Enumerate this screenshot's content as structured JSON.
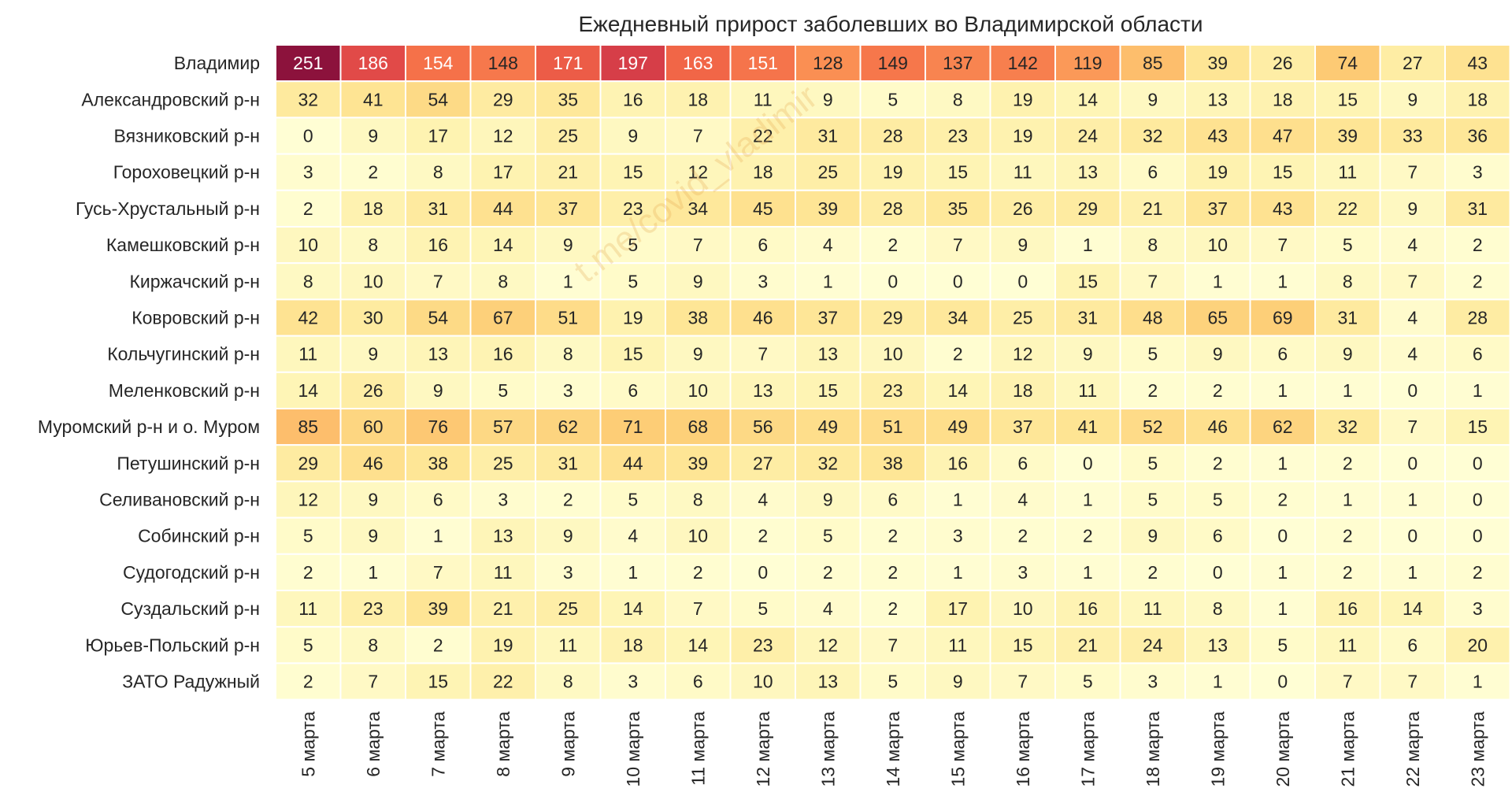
{
  "chart_data": {
    "type": "heatmap",
    "title": "Ежедневный прирост заболевших во Владимирской области",
    "xlabel": "",
    "ylabel": "",
    "x": [
      "5 марта",
      "6 марта",
      "7 марта",
      "8 марта",
      "9 марта",
      "10 марта",
      "11 марта",
      "12 марта",
      "13 марта",
      "14 марта",
      "15 марта",
      "16 марта",
      "17 марта",
      "18 марта",
      "19 марта",
      "20 марта",
      "21 марта",
      "22 марта",
      "23 марта"
    ],
    "y": [
      "Владимир",
      "Александровский р-н",
      "Вязниковский р-н",
      "Гороховецкий р-н",
      "Гусь-Хрустальный р-н",
      "Камешковский р-н",
      "Киржачский р-н",
      "Ковровский р-н",
      "Кольчугинский р-н",
      "Меленковский р-н",
      "Муромский р-н и о. Муром",
      "Петушинский р-н",
      "Селивановский р-н",
      "Собинский р-н",
      "Судогодский р-н",
      "Суздальский р-н",
      "Юрьев-Польский р-н",
      "ЗАТО Радужный"
    ],
    "values": [
      [
        251,
        186,
        154,
        148,
        171,
        197,
        163,
        151,
        128,
        149,
        137,
        142,
        119,
        85,
        39,
        26,
        74,
        27,
        43
      ],
      [
        32,
        41,
        54,
        29,
        35,
        16,
        18,
        11,
        9,
        5,
        8,
        19,
        14,
        9,
        13,
        18,
        15,
        9,
        18
      ],
      [
        0,
        9,
        17,
        12,
        25,
        9,
        7,
        22,
        31,
        28,
        23,
        19,
        24,
        32,
        43,
        47,
        39,
        33,
        36
      ],
      [
        3,
        2,
        8,
        17,
        21,
        15,
        12,
        18,
        25,
        19,
        15,
        11,
        13,
        6,
        19,
        15,
        11,
        7,
        3
      ],
      [
        2,
        18,
        31,
        44,
        37,
        23,
        34,
        45,
        39,
        28,
        35,
        26,
        29,
        21,
        37,
        43,
        22,
        9,
        31
      ],
      [
        10,
        8,
        16,
        14,
        9,
        5,
        7,
        6,
        4,
        2,
        7,
        9,
        1,
        8,
        10,
        7,
        5,
        4,
        2
      ],
      [
        8,
        10,
        7,
        8,
        1,
        5,
        9,
        3,
        1,
        0,
        0,
        0,
        15,
        7,
        1,
        1,
        8,
        7,
        2
      ],
      [
        42,
        30,
        54,
        67,
        51,
        19,
        38,
        46,
        37,
        29,
        34,
        25,
        31,
        48,
        65,
        69,
        31,
        4,
        28
      ],
      [
        11,
        9,
        13,
        16,
        8,
        15,
        9,
        7,
        13,
        10,
        2,
        12,
        9,
        5,
        9,
        6,
        9,
        4,
        6
      ],
      [
        14,
        26,
        9,
        5,
        3,
        6,
        10,
        13,
        15,
        23,
        14,
        18,
        11,
        2,
        2,
        1,
        1,
        0,
        1
      ],
      [
        85,
        60,
        76,
        57,
        62,
        71,
        68,
        56,
        49,
        51,
        49,
        37,
        41,
        52,
        46,
        62,
        32,
        7,
        15
      ],
      [
        29,
        46,
        38,
        25,
        31,
        44,
        39,
        27,
        32,
        38,
        16,
        6,
        0,
        5,
        2,
        1,
        2,
        0,
        0
      ],
      [
        12,
        9,
        6,
        3,
        2,
        5,
        8,
        4,
        9,
        6,
        1,
        4,
        1,
        5,
        5,
        2,
        1,
        1,
        0
      ],
      [
        5,
        9,
        1,
        13,
        9,
        4,
        10,
        2,
        5,
        2,
        3,
        2,
        2,
        9,
        6,
        0,
        2,
        0,
        0
      ],
      [
        2,
        1,
        7,
        11,
        3,
        1,
        2,
        0,
        2,
        2,
        1,
        3,
        1,
        2,
        0,
        1,
        2,
        1,
        2
      ],
      [
        11,
        23,
        39,
        21,
        25,
        14,
        7,
        5,
        4,
        2,
        17,
        10,
        16,
        11,
        8,
        1,
        16,
        14,
        3
      ],
      [
        5,
        8,
        2,
        19,
        11,
        18,
        14,
        23,
        12,
        7,
        11,
        15,
        21,
        24,
        13,
        5,
        11,
        6,
        20
      ],
      [
        2,
        7,
        15,
        22,
        8,
        3,
        6,
        10,
        13,
        5,
        9,
        7,
        5,
        3,
        1,
        0,
        7,
        7,
        1
      ]
    ],
    "vmin": 0,
    "vmax": 251,
    "colormap": "YlOrRd-spectral",
    "grid": false,
    "legend": "none",
    "watermark": "t.me/covid_vladimir"
  }
}
